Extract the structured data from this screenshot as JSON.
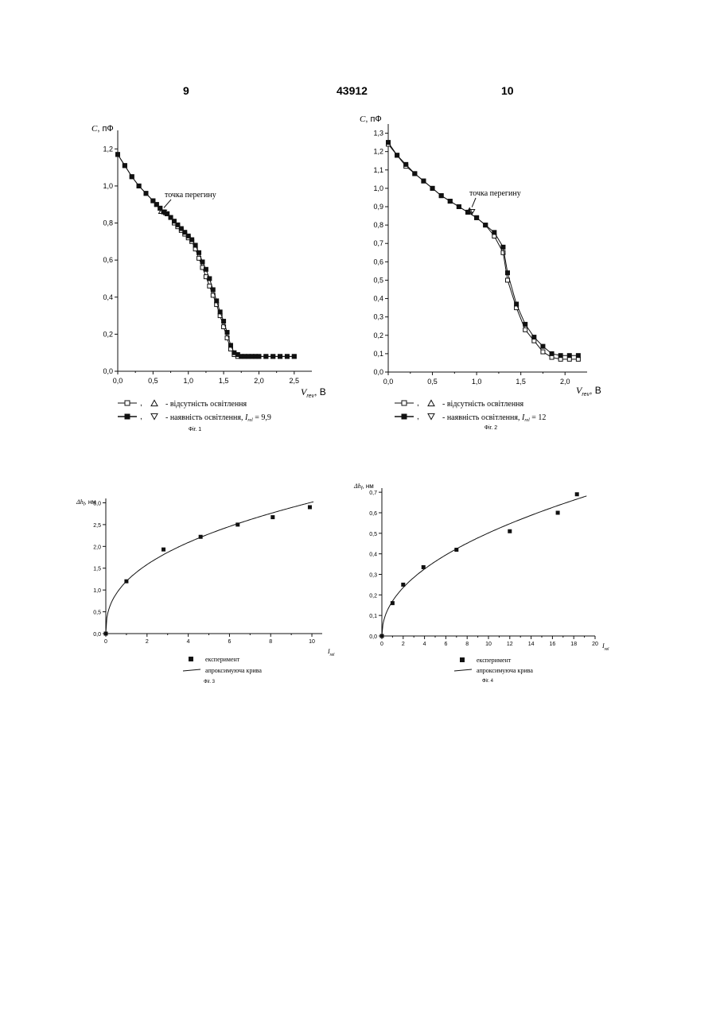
{
  "header": {
    "left_page": "9",
    "patent_number": "43912",
    "right_page": "10"
  },
  "chart_data": [
    {
      "id": "fig1",
      "type": "line",
      "caption": "Фіг. 1",
      "ylabel_main": "C",
      "ylabel_unit": ", пФ",
      "xlabel_main": "V",
      "xlabel_sub": "rev",
      "xlabel_unit": ", В",
      "xlim": [
        0,
        2.75
      ],
      "ylim": [
        0,
        1.3
      ],
      "xticks": [
        "0,0",
        "0,5",
        "1,0",
        "1,5",
        "2,0",
        "2,5"
      ],
      "xtick_values": [
        0,
        0.5,
        1.0,
        1.5,
        2.0,
        2.5
      ],
      "yticks": [
        "0,0",
        "0,2",
        "0,4",
        "0,6",
        "0,8",
        "1,0",
        "1,2"
      ],
      "ytick_values": [
        0,
        0.2,
        0.4,
        0.6,
        0.8,
        1.0,
        1.2
      ],
      "annotation": {
        "text": "точка перегину",
        "x": 0.62,
        "y": 0.865
      },
      "legend": [
        {
          "symbol": "open",
          "marker": "up-triangle",
          "text": "- відсутність освітлення"
        },
        {
          "symbol": "filled",
          "marker": "down-triangle",
          "text_prefix": "- наявність освітлення, ",
          "text_var": "I",
          "text_sub": "rel",
          "text_suffix": " = 9,9"
        }
      ],
      "series": [
        {
          "name": "відсутність освітлення",
          "style": "open",
          "x": [
            0.0,
            0.1,
            0.2,
            0.3,
            0.4,
            0.5,
            0.55,
            0.6,
            0.65,
            0.7,
            0.75,
            0.8,
            0.85,
            0.9,
            0.95,
            1.0,
            1.05,
            1.1,
            1.15,
            1.2,
            1.25,
            1.3,
            1.35,
            1.4,
            1.45,
            1.5,
            1.55,
            1.6,
            1.65,
            1.7,
            1.75,
            1.8,
            1.85,
            1.9,
            1.95,
            2.0,
            2.1,
            2.2,
            2.3,
            2.4,
            2.5
          ],
          "y": [
            1.17,
            1.11,
            1.05,
            1.0,
            0.96,
            0.92,
            0.9,
            0.88,
            0.86,
            0.85,
            0.83,
            0.8,
            0.78,
            0.76,
            0.74,
            0.72,
            0.7,
            0.66,
            0.61,
            0.56,
            0.51,
            0.46,
            0.41,
            0.36,
            0.3,
            0.24,
            0.18,
            0.12,
            0.09,
            0.08,
            0.08,
            0.08,
            0.08,
            0.08,
            0.08,
            0.08,
            0.08,
            0.08,
            0.08,
            0.08,
            0.08
          ]
        },
        {
          "name": "наявність освітлення",
          "style": "filled",
          "x": [
            0.0,
            0.1,
            0.2,
            0.3,
            0.4,
            0.5,
            0.55,
            0.6,
            0.65,
            0.7,
            0.75,
            0.8,
            0.85,
            0.9,
            0.95,
            1.0,
            1.05,
            1.1,
            1.15,
            1.2,
            1.25,
            1.3,
            1.35,
            1.4,
            1.45,
            1.5,
            1.55,
            1.6,
            1.65,
            1.7,
            1.75,
            1.8,
            1.85,
            1.9,
            1.95,
            2.0,
            2.1,
            2.2,
            2.3,
            2.4,
            2.5
          ],
          "y": [
            1.17,
            1.11,
            1.05,
            1.0,
            0.96,
            0.92,
            0.9,
            0.88,
            0.86,
            0.85,
            0.83,
            0.81,
            0.79,
            0.77,
            0.75,
            0.73,
            0.71,
            0.68,
            0.64,
            0.59,
            0.55,
            0.5,
            0.44,
            0.38,
            0.32,
            0.27,
            0.21,
            0.14,
            0.1,
            0.09,
            0.08,
            0.08,
            0.08,
            0.08,
            0.08,
            0.08,
            0.08,
            0.08,
            0.08,
            0.08,
            0.08
          ]
        }
      ]
    },
    {
      "id": "fig2",
      "type": "line",
      "caption": "Фіг. 2",
      "ylabel_main": "C",
      "ylabel_unit": ", пФ",
      "xlabel_main": "V",
      "xlabel_sub": "rev",
      "xlabel_unit": ", В",
      "xlim": [
        0,
        2.25
      ],
      "ylim": [
        0,
        1.35
      ],
      "xticks": [
        "0,0",
        "0,5",
        "1,0",
        "1,5",
        "2,0"
      ],
      "xtick_values": [
        0,
        0.5,
        1.0,
        1.5,
        2.0
      ],
      "yticks": [
        "0,0",
        "0,1",
        "0,2",
        "0,3",
        "0,4",
        "0,5",
        "0,6",
        "0,7",
        "0,8",
        "0,9",
        "1,0",
        "1,1",
        "1,2",
        "1,3"
      ],
      "ytick_values": [
        0,
        0.1,
        0.2,
        0.3,
        0.4,
        0.5,
        0.6,
        0.7,
        0.8,
        0.9,
        1.0,
        1.1,
        1.2,
        1.3
      ],
      "annotation": {
        "text": "точка перегину",
        "x": 0.92,
        "y": 0.88
      },
      "legend": [
        {
          "symbol": "open",
          "marker": "up-triangle",
          "text": "- відсутність освітлення"
        },
        {
          "symbol": "filled",
          "marker": "down-triangle",
          "text_prefix": "- наявність освітлення, ",
          "text_var": "I",
          "text_sub": "rel",
          "text_suffix": " = 12"
        }
      ],
      "series": [
        {
          "name": "відсутність освітлення",
          "style": "open",
          "x": [
            0.0,
            0.1,
            0.2,
            0.3,
            0.4,
            0.5,
            0.6,
            0.7,
            0.8,
            0.9,
            1.0,
            1.1,
            1.2,
            1.3,
            1.35,
            1.45,
            1.55,
            1.65,
            1.75,
            1.85,
            1.95,
            2.05,
            2.15
          ],
          "y": [
            1.24,
            1.18,
            1.12,
            1.08,
            1.04,
            1.0,
            0.96,
            0.93,
            0.9,
            0.87,
            0.84,
            0.8,
            0.74,
            0.65,
            0.5,
            0.35,
            0.23,
            0.17,
            0.11,
            0.08,
            0.07,
            0.07,
            0.07
          ]
        },
        {
          "name": "наявність освітлення",
          "style": "filled",
          "x": [
            0.0,
            0.1,
            0.2,
            0.3,
            0.4,
            0.5,
            0.6,
            0.7,
            0.8,
            0.9,
            1.0,
            1.1,
            1.2,
            1.3,
            1.35,
            1.45,
            1.55,
            1.65,
            1.75,
            1.85,
            1.95,
            2.05,
            2.15
          ],
          "y": [
            1.25,
            1.18,
            1.13,
            1.08,
            1.04,
            1.0,
            0.96,
            0.93,
            0.9,
            0.87,
            0.84,
            0.8,
            0.76,
            0.68,
            0.54,
            0.37,
            0.26,
            0.19,
            0.14,
            0.1,
            0.09,
            0.09,
            0.09
          ]
        }
      ]
    },
    {
      "id": "fig3",
      "type": "scatter",
      "caption": "Фіг. 3",
      "ylabel_main": "Δh",
      "ylabel_sub": "f",
      "ylabel_unit": ", нм",
      "xlabel_main": "I",
      "xlabel_sub": "rel",
      "xlim": [
        0,
        10.5
      ],
      "ylim": [
        0,
        3.1
      ],
      "xticks": [
        "0",
        "2",
        "4",
        "6",
        "8",
        "10"
      ],
      "xtick_values": [
        0,
        2,
        4,
        6,
        8,
        10
      ],
      "yticks": [
        "0,0",
        "0,5",
        "1,0",
        "1,5",
        "2,0",
        "2,5",
        "3,0"
      ],
      "ytick_values": [
        0,
        0.5,
        1.0,
        1.5,
        2.0,
        2.5,
        3.0
      ],
      "legend": [
        {
          "symbol": "square",
          "text": "експеримент"
        },
        {
          "symbol": "line",
          "text": "апроксимуюча крива"
        }
      ],
      "points": {
        "name": "експеримент",
        "x": [
          0,
          1,
          2.8,
          4.6,
          6.4,
          8.1,
          9.9
        ],
        "y": [
          0,
          1.2,
          1.93,
          2.22,
          2.5,
          2.67,
          2.9
        ]
      },
      "fit": {
        "name": "апроксимуюча крива",
        "a": 1.2,
        "b": 0.4
      }
    },
    {
      "id": "fig4",
      "type": "scatter",
      "caption": "Фіг. 4",
      "ylabel_main": "Δh",
      "ylabel_sub": "f",
      "ylabel_unit": ", нм",
      "xlabel_main": "I",
      "xlabel_sub": "rel",
      "xlim": [
        0,
        20
      ],
      "ylim": [
        0,
        0.72
      ],
      "xticks": [
        "0",
        "2",
        "4",
        "6",
        "8",
        "10",
        "12",
        "14",
        "16",
        "18",
        "20"
      ],
      "xtick_values": [
        0,
        2,
        4,
        6,
        8,
        10,
        12,
        14,
        16,
        18,
        20
      ],
      "yticks": [
        "0,0",
        "0,1",
        "0,2",
        "0,3",
        "0,4",
        "0,5",
        "0,6",
        "0,7"
      ],
      "ytick_values": [
        0,
        0.1,
        0.2,
        0.3,
        0.4,
        0.5,
        0.6,
        0.7
      ],
      "legend": [
        {
          "symbol": "square",
          "text": "експеримент"
        },
        {
          "symbol": "line",
          "text": "апроксимуюча крива"
        }
      ],
      "points": {
        "name": "експеримент",
        "x": [
          0,
          1,
          2,
          3.9,
          7,
          12,
          16.5,
          18.3
        ],
        "y": [
          0,
          0.16,
          0.25,
          0.335,
          0.42,
          0.51,
          0.6,
          0.69
        ]
      },
      "fit": {
        "name": "апроксимуюча крива",
        "a": 0.17,
        "b": 0.47
      }
    }
  ]
}
